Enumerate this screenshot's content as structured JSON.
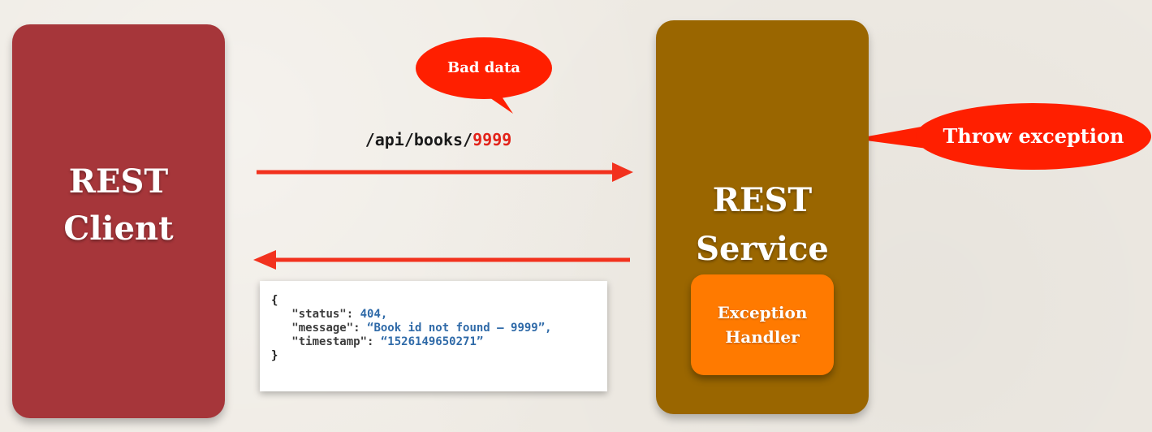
{
  "client": {
    "line1": "REST",
    "line2": "Client",
    "color": "#a6363a"
  },
  "service": {
    "line1": "REST",
    "line2": "Service",
    "color": "#9a6600"
  },
  "exception_handler": {
    "line1": "Exception",
    "line2": "Handler",
    "color": "#ff7a00"
  },
  "request": {
    "path": "/api/books/",
    "id": "9999"
  },
  "callouts": {
    "bad_data": "Bad data",
    "throw_exception": "Throw exception",
    "color": "#ff1f00"
  },
  "response_json": {
    "open_brace": "{",
    "close_brace": "}",
    "status_key": "\"status\": ",
    "status_value": "404,",
    "message_key": "\"message\": ",
    "message_value": "“Book id not found – 9999”,",
    "timestamp_key": "\"timestamp\": ",
    "timestamp_value": "“1526149650271”"
  },
  "icons": {
    "danger": "skull-crossbones-icon"
  },
  "arrow_color": "#f2321e"
}
